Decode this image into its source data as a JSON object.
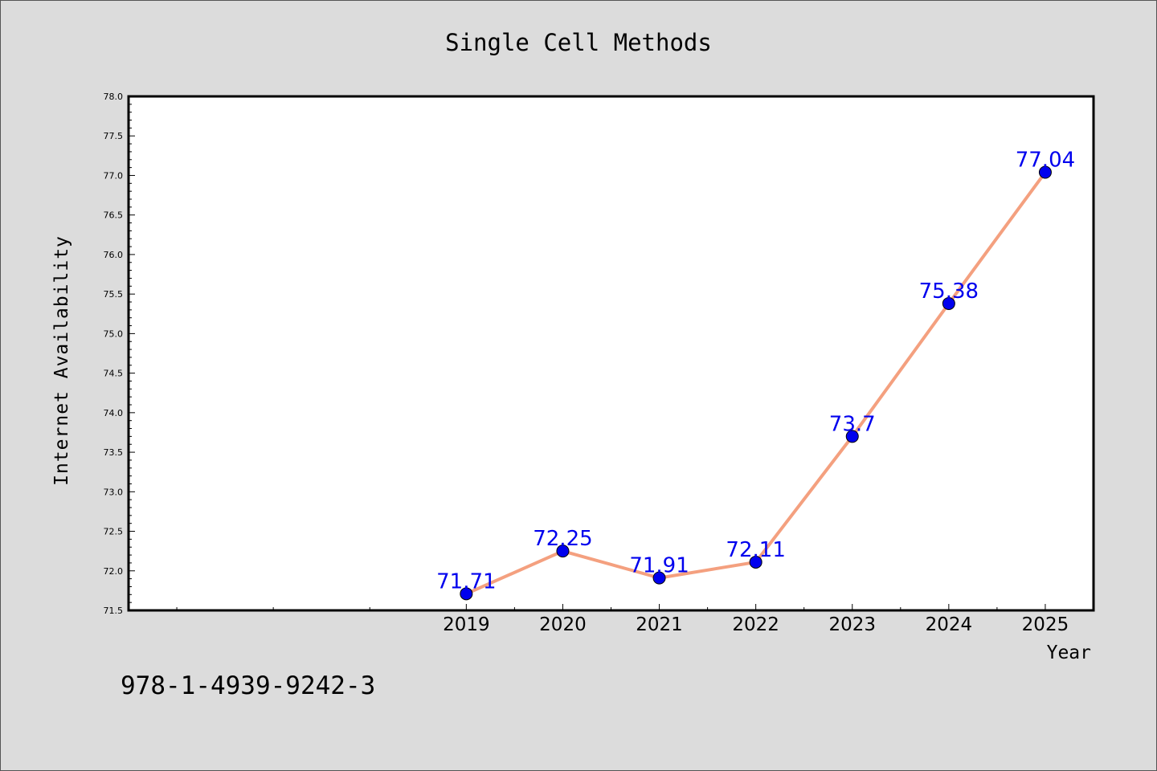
{
  "chart_data": {
    "type": "line",
    "title": "Single Cell Methods",
    "xlabel": "Year",
    "ylabel": "Internet Availability",
    "x": [
      2019,
      2020,
      2021,
      2022,
      2023,
      2024,
      2025
    ],
    "series": [
      {
        "values": [
          71.71,
          72.25,
          71.91,
          72.11,
          73.7,
          75.38,
          77.04
        ]
      }
    ],
    "data_labels": [
      "71.71",
      "72.25",
      "71.91",
      "72.11",
      "73.7",
      "75.38",
      "77.04"
    ],
    "xlim": [
      2015.5,
      2025.5
    ],
    "ylim": [
      71.5,
      78.0
    ],
    "y_major_ticks": [
      "71.5",
      "72.0",
      "72.5",
      "73.0",
      "73.5",
      "74.0",
      "74.5",
      "75.0",
      "75.5",
      "76.0",
      "76.5",
      "77.0",
      "77.5",
      "78.0"
    ],
    "x_tick_labels": [
      "2019",
      "2020",
      "2021",
      "2022",
      "2023",
      "2024",
      "2025"
    ],
    "grid": false,
    "legend": "none",
    "line_color": "#f4a07f",
    "marker_color": "#0000ee",
    "label_color": "#0000ee"
  },
  "footer": {
    "isbn": "978-1-4939-9242-3"
  }
}
